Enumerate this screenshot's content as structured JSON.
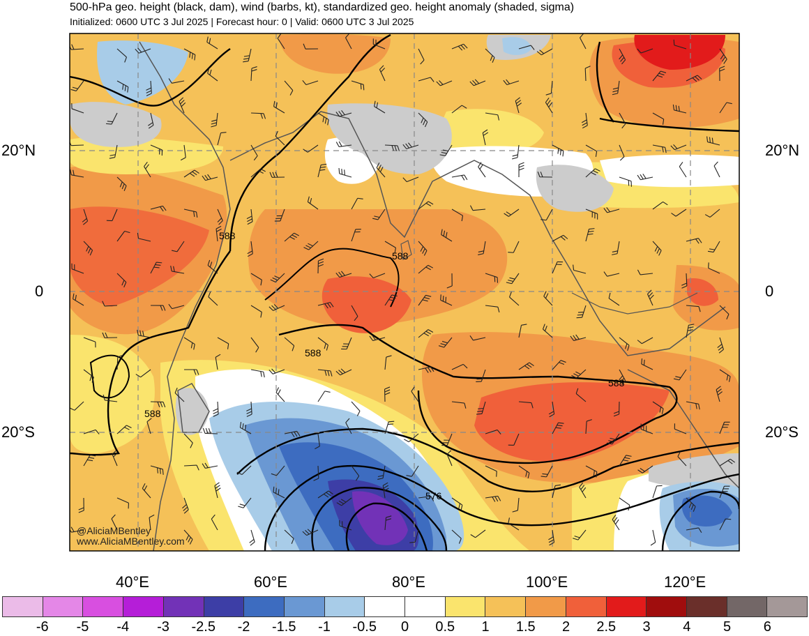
{
  "title": "500-hPa geo. height (black, dam), wind (barbs, kt), standardized geo. height anomaly (shaded, sigma)",
  "subtitle": "Initialized: 0600 UTC 3 Jul 2025 | Forecast hour: 0 | Valid: 0600 UTC 3 Jul 2025",
  "latitude_labels": [
    "20°N",
    "0",
    "20°S"
  ],
  "longitude_labels": [
    "40°E",
    "60°E",
    "80°E",
    "100°E",
    "120°E"
  ],
  "contour_labels": [
    "588",
    "588",
    "588",
    "588",
    "588",
    "576"
  ],
  "credit": {
    "handle": "@AliciaMBentley",
    "url": "www.AliciaMBentley.com"
  },
  "colorbar": {
    "labels": [
      "-6",
      "-5",
      "-4",
      "-3",
      "-2.5",
      "-2",
      "-1.5",
      "-1",
      "-0.5",
      "0",
      "0.5",
      "1",
      "1.5",
      "2",
      "2.5",
      "3",
      "4",
      "5",
      "6"
    ],
    "colors": [
      "#ebbbe8",
      "#e487e7",
      "#d84fe0",
      "#b51ed8",
      "#7232b7",
      "#3d3ea6",
      "#3d6cc0",
      "#6a98d3",
      "#a8cce8",
      "#ffffff",
      "#ffffff",
      "#fae46d",
      "#f5c158",
      "#f19a48",
      "#f0603a",
      "#e21b1b",
      "#a00d0d",
      "#6a2f2a",
      "#736767",
      "#a49898"
    ]
  }
}
